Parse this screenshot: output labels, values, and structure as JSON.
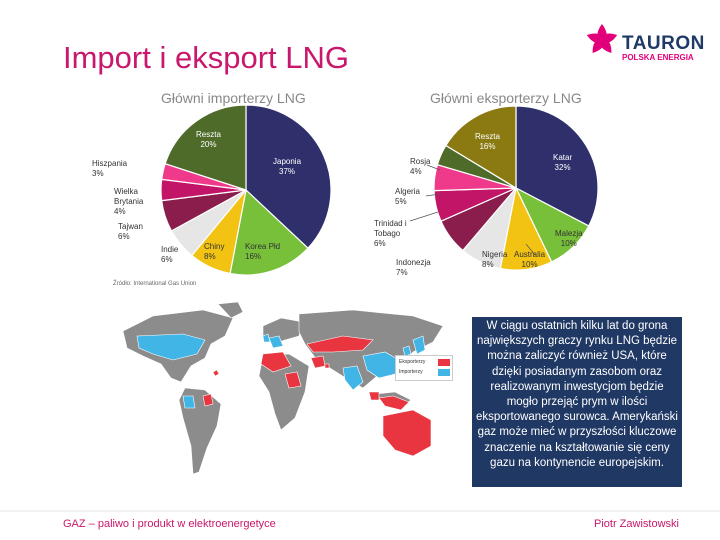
{
  "title": "Import i eksport LNG",
  "brand": {
    "name": "TAURON",
    "tagline": "POLSKA ENERGIA",
    "colors": {
      "pink": "#e2007a",
      "navy": "#1f3a68"
    }
  },
  "colors": {
    "title": "#c8176c",
    "textbox_bg": "#203864",
    "exporters_map": "#e8353f",
    "importers_map": "#41b6e6"
  },
  "source_note": "Źródło: International Gas Union",
  "chart_data": [
    {
      "type": "pie",
      "title": "Główni importerzy LNG",
      "slices": [
        {
          "label": "Japonia 37%",
          "value": 37,
          "color": "#2e2f6b"
        },
        {
          "label": "Korea Płd 16%",
          "value": 16,
          "color": "#78bf3a"
        },
        {
          "label": "Chiny 8%",
          "value": 8,
          "color": "#f2c313"
        },
        {
          "label": "Indie 6%",
          "value": 6,
          "color": "#e6e6e6"
        },
        {
          "label": "Tajwan 6%",
          "value": 6,
          "color": "#8a1d4b"
        },
        {
          "label": "Wielka Brytania 4%",
          "value": 4,
          "color": "#c21567"
        },
        {
          "label": "Hiszpania 3%",
          "value": 3,
          "color": "#ef3a8c"
        },
        {
          "label": "Reszta 20%",
          "value": 20,
          "color": "#4e6b2a"
        }
      ]
    },
    {
      "type": "pie",
      "title": "Główni eksporterzy LNG",
      "slices": [
        {
          "label": "Katar 32%",
          "value": 32,
          "color": "#2e2f6b"
        },
        {
          "label": "Malezja 10%",
          "value": 10,
          "color": "#78bf3a"
        },
        {
          "label": "Australia 10%",
          "value": 10,
          "color": "#f2c313"
        },
        {
          "label": "Nigeria 8%",
          "value": 8,
          "color": "#e6e6e6"
        },
        {
          "label": "Indonezja 7%",
          "value": 7,
          "color": "#8a1d4b"
        },
        {
          "label": "Trinidad i Tobago 6%",
          "value": 6,
          "color": "#c21567"
        },
        {
          "label": "Algeria 5%",
          "value": 5,
          "color": "#ef3a8c"
        },
        {
          "label": "Rosja 4%",
          "value": 4,
          "color": "#4e6b2a"
        },
        {
          "label": "Reszta 16%",
          "value": 16,
          "color": "#8b7a12"
        }
      ]
    }
  ],
  "labels": {
    "imp": {
      "reszta": "Reszta\n20%",
      "japonia": "Japonia\n37%",
      "hiszpania": "Hiszpania\n3%",
      "wielka_brytania": "Wielka\nBrytania\n4%",
      "tajwan": "Tajwan\n6%",
      "indie": "Indie\n6%",
      "chiny": "Chiny\n8%",
      "korea": "Korea Płd\n16%"
    },
    "exp": {
      "reszta": "Reszta\n16%",
      "katar": "Katar\n32%",
      "rosja": "Rosja\n4%",
      "algeria": "Algeria\n5%",
      "trinidad": "Trinidad i\nTobago\n6%",
      "indonezja": "Indonezja\n7%",
      "nigeria": "Nigeria\n8%",
      "australia": "Australia\n10%",
      "malezja": "Malezja\n10%"
    }
  },
  "map_legend": {
    "exporters": "Eksporterzy",
    "importers": "Importerzy"
  },
  "textbox": "W ciągu ostatnich kilku lat do grona największych graczy rynku LNG będzie można zaliczyć również USA, które dzięki posiadanym zasobom oraz realizowanym inwestycjom będzie mogło przejąć prym w ilości eksportowanego surowca. Amerykański gaz może mieć w przyszłości kluczowe znaczenie na kształtowanie się ceny gazu na kontynencie europejskim.",
  "footer": {
    "left": "GAZ – paliwo i produkt w elektroenergetyce",
    "right": "Piotr Zawistowski"
  }
}
